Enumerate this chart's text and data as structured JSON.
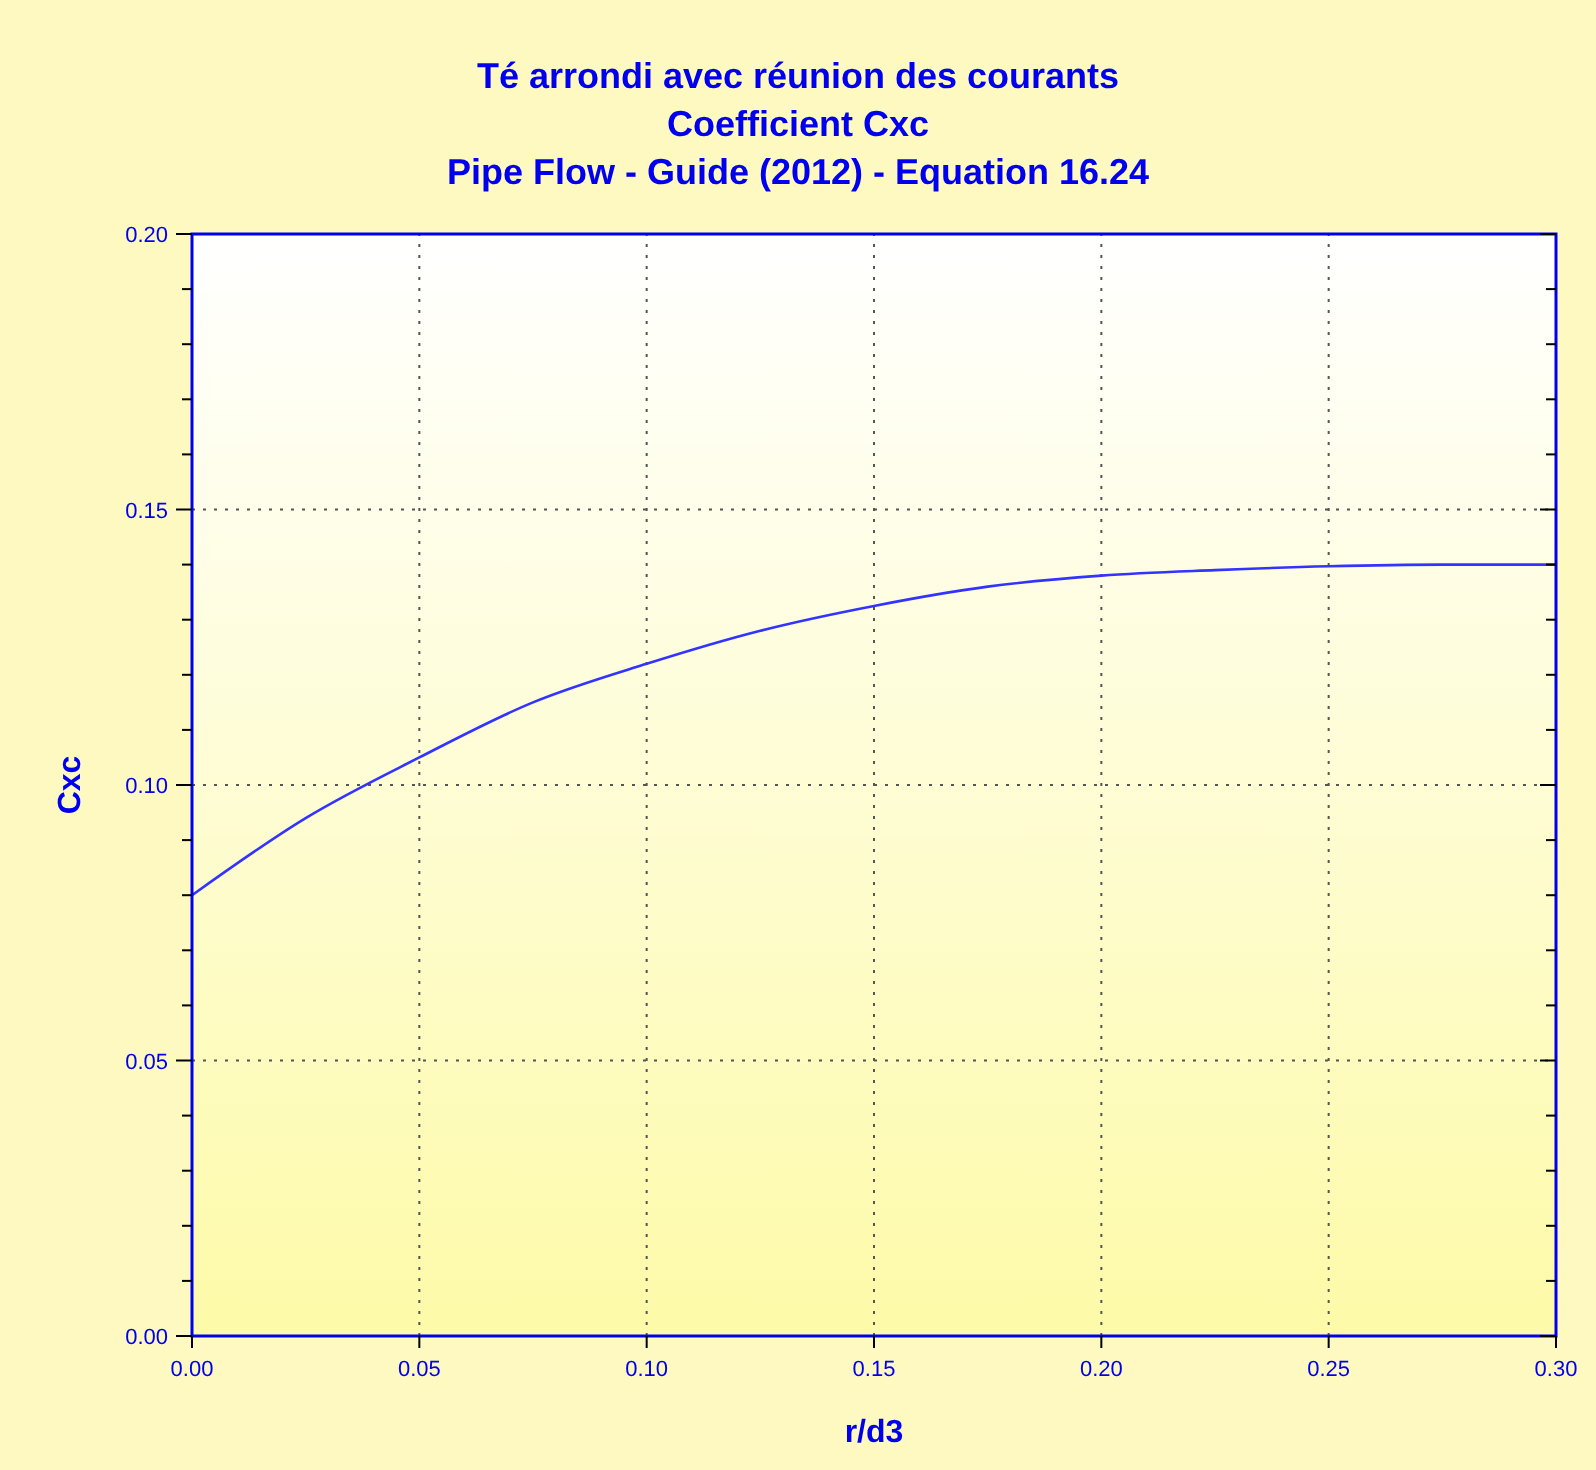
{
  "chart_data": {
    "type": "line",
    "title": "Té arrondi avec réunion des courants",
    "subtitle": "Coefficient Cxc\nPipe Flow - Guide (2012) - Equation 16.24",
    "xlabel": "r/d3",
    "ylabel": "Cxc",
    "x": [
      0,
      0.025,
      0.05,
      0.075,
      0.1,
      0.125,
      0.15,
      0.175,
      0.2,
      0.225,
      0.25,
      0.275,
      0.3
    ],
    "series": [
      {
        "color": "#3333ff",
        "values": [
          0.08,
          0.094,
          0.105,
          0.115,
          0.122,
          0.128,
          0.1325,
          0.136,
          0.138,
          0.139,
          0.1397,
          0.14,
          0.14
        ]
      }
    ],
    "xlim": [
      0,
      0.3
    ],
    "ylim": [
      0,
      0.2
    ],
    "xticks": [
      {
        "value": 0,
        "label": "0.00"
      },
      {
        "value": 0.05,
        "label": "0.05"
      },
      {
        "value": 0.1,
        "label": "0.10"
      },
      {
        "value": 0.15,
        "label": "0.15"
      },
      {
        "value": 0.2,
        "label": "0.20"
      },
      {
        "value": 0.25,
        "label": "0.25"
      },
      {
        "value": 0.3,
        "label": "0.30"
      }
    ],
    "yticks": [
      {
        "value": 0,
        "label": "0.00"
      },
      {
        "value": 0.01,
        "label": null
      },
      {
        "value": 0.02,
        "label": null
      },
      {
        "value": 0.03,
        "label": null
      },
      {
        "value": 0.04,
        "label": null
      },
      {
        "value": 0.05,
        "label": "0.05"
      },
      {
        "value": 0.06,
        "label": null
      },
      {
        "value": 0.07,
        "label": null
      },
      {
        "value": 0.08,
        "label": null
      },
      {
        "value": 0.09,
        "label": null
      },
      {
        "value": 0.1,
        "label": "0.10"
      },
      {
        "value": 0.11,
        "label": null
      },
      {
        "value": 0.12,
        "label": null
      },
      {
        "value": 0.13,
        "label": null
      },
      {
        "value": 0.14,
        "label": null
      },
      {
        "value": 0.15,
        "label": "0.15"
      },
      {
        "value": 0.16,
        "label": null
      },
      {
        "value": 0.17,
        "label": null
      },
      {
        "value": 0.18,
        "label": null
      },
      {
        "value": 0.19,
        "label": null
      },
      {
        "value": 0.2,
        "label": "0.20"
      }
    ],
    "grid": true,
    "marker": "none",
    "line_style": "solid"
  }
}
